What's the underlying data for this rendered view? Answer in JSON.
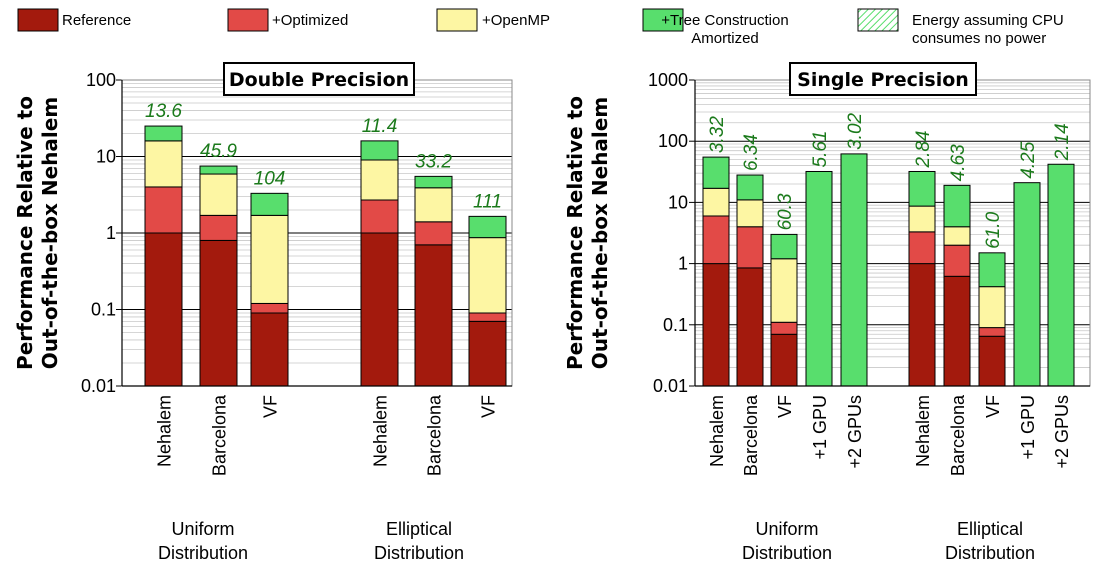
{
  "legend": [
    {
      "label": "Reference",
      "color": "#a31a0d",
      "style": "solid"
    },
    {
      "label": "+Optimized",
      "color": "#e24a47",
      "style": "solid"
    },
    {
      "label": "+OpenMP",
      "color": "#fdf6a3",
      "style": "solid"
    },
    {
      "label": "+Tree Construction\nAmortized",
      "color": "#58de6d",
      "style": "solid"
    },
    {
      "label": "Energy assuming CPU\nconsumes no power",
      "color": "#ffffff",
      "style": "hatched"
    }
  ],
  "ylabel": "Performance Relative to\nOut-of-the-box Nehalem",
  "chart_data": [
    {
      "type": "bar",
      "stacked": true,
      "log_scale": true,
      "title": "Double Precision",
      "ylim": [
        0.01,
        100
      ],
      "yticks": [
        "0.01",
        "0.1",
        "1",
        "10",
        "100"
      ],
      "groups": [
        {
          "name": "Uniform\nDistribution",
          "bars": [
            {
              "label": "Nehalem",
              "levels": [
                1.0,
                4.0,
                16.0,
                25.0
              ],
              "annotation": "13.6"
            },
            {
              "label": "Barcelona",
              "levels": [
                0.8,
                1.7,
                5.9,
                7.5
              ],
              "annotation": "45.9"
            },
            {
              "label": "VF",
              "levels": [
                0.09,
                0.12,
                1.7,
                3.3
              ],
              "annotation": "104"
            }
          ]
        },
        {
          "name": "Elliptical\nDistribution",
          "bars": [
            {
              "label": "Nehalem",
              "levels": [
                1.0,
                2.7,
                9.0,
                16.0
              ],
              "annotation": "11.4"
            },
            {
              "label": "Barcelona",
              "levels": [
                0.7,
                1.4,
                3.9,
                5.5
              ],
              "annotation": "33.2"
            },
            {
              "label": "VF",
              "levels": [
                0.07,
                0.09,
                0.87,
                1.65
              ],
              "annotation": "111"
            }
          ]
        }
      ]
    },
    {
      "type": "bar",
      "stacked": true,
      "log_scale": true,
      "title": "Single Precision",
      "ylim": [
        0.01,
        1000
      ],
      "yticks": [
        "0.01",
        "0.1",
        "1",
        "10",
        "100",
        "1000"
      ],
      "groups": [
        {
          "name": "Uniform\nDistribution",
          "bars": [
            {
              "label": "Nehalem",
              "levels": [
                1.0,
                6.0,
                17.0,
                55.0
              ],
              "annotation": "3.32"
            },
            {
              "label": "Barcelona",
              "levels": [
                0.85,
                4.0,
                11.0,
                28.0
              ],
              "annotation": "6.34"
            },
            {
              "label": "VF",
              "levels": [
                0.07,
                0.11,
                1.2,
                3.0
              ],
              "annotation": "60.3"
            },
            {
              "label": "+1 GPU",
              "levels": [
                0,
                0,
                0,
                32.0
              ],
              "annotation": "5.61"
            },
            {
              "label": "+2 GPUs",
              "levels": [
                0,
                0,
                0,
                62.0
              ],
              "annotation": "3.02"
            }
          ]
        },
        {
          "name": "Elliptical\nDistribution",
          "bars": [
            {
              "label": "Nehalem",
              "levels": [
                1.0,
                3.3,
                8.7,
                32.0
              ],
              "annotation": "2.84"
            },
            {
              "label": "Barcelona",
              "levels": [
                0.62,
                2.0,
                4.0,
                19.0
              ],
              "annotation": "4.63"
            },
            {
              "label": "VF",
              "levels": [
                0.065,
                0.09,
                0.42,
                1.5
              ],
              "annotation": "61.0"
            },
            {
              "label": "+1 GPU",
              "levels": [
                0,
                0,
                0,
                21.0
              ],
              "annotation": "4.25"
            },
            {
              "label": "+2 GPUs",
              "levels": [
                0,
                0,
                0,
                42.0
              ],
              "annotation": "2.14"
            }
          ]
        }
      ]
    }
  ]
}
